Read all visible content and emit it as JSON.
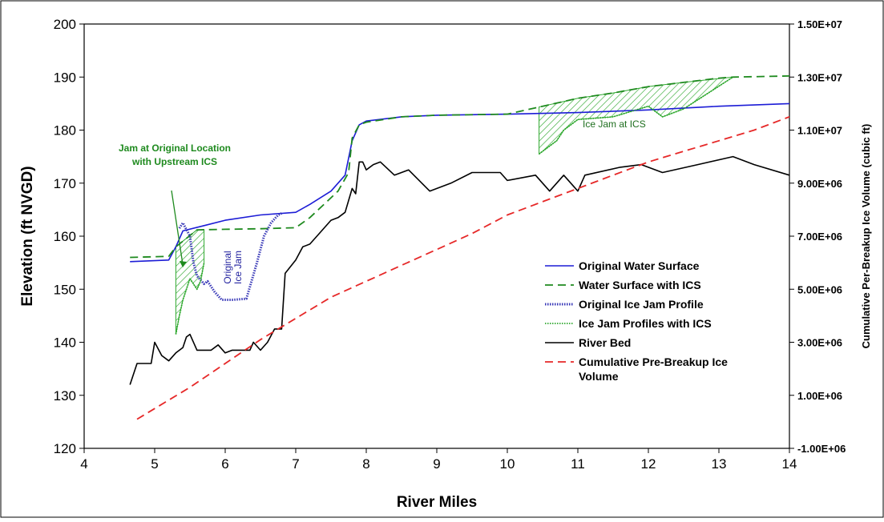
{
  "chart_data": {
    "type": "line",
    "xlabel": "River Miles",
    "ylabel": "Elevation (ft NVGD)",
    "y2label": "Cumulative Per-Breakup Ice Volume (cubic ft)",
    "xlim": [
      4,
      14
    ],
    "ylim": [
      120,
      200
    ],
    "y2lim": [
      -1000000,
      15000000
    ],
    "x_ticks": [
      "4",
      "5",
      "6",
      "7",
      "8",
      "9",
      "10",
      "11",
      "12",
      "13",
      "14"
    ],
    "y_ticks": [
      "120",
      "130",
      "140",
      "150",
      "160",
      "170",
      "180",
      "190",
      "200"
    ],
    "y2_ticks": [
      "-1.00E+06",
      "1.00E+06",
      "3.00E+06",
      "5.00E+06",
      "7.00E+06",
      "9.00E+06",
      "1.10E+07",
      "1.30E+07",
      "1.50E+07"
    ],
    "grid": false,
    "legend_position": "lower-right inside plot",
    "series": [
      {
        "name": "Original Water Surface",
        "style": "solid",
        "color": "#1c1cd6",
        "axis": "left",
        "x": [
          4.65,
          5.2,
          5.3,
          5.4,
          5.7,
          6.0,
          6.5,
          7.0,
          7.2,
          7.5,
          7.7,
          7.8,
          7.9,
          8.0,
          8.5,
          9.0,
          10.0,
          11.0,
          12.0,
          13.0,
          14.0
        ],
        "y": [
          155.2,
          155.5,
          158.0,
          161.0,
          162.0,
          163.0,
          164.0,
          164.5,
          166.0,
          168.5,
          171.5,
          178.0,
          181.0,
          181.7,
          182.5,
          182.8,
          183.0,
          183.3,
          183.8,
          184.5,
          185.0
        ]
      },
      {
        "name": "Water Surface with ICS",
        "style": "dashed",
        "color": "#1e8a1e",
        "axis": "left",
        "x": [
          4.65,
          5.2,
          5.3,
          5.6,
          6.0,
          6.5,
          7.0,
          7.2,
          7.4,
          7.6,
          7.75,
          7.8,
          7.9,
          8.0,
          8.5,
          9.0,
          10.0,
          10.5,
          11.0,
          11.5,
          12.0,
          12.5,
          13.0,
          13.2,
          14.0
        ],
        "y": [
          156.0,
          156.2,
          158.0,
          161.2,
          161.3,
          161.4,
          161.6,
          163.5,
          166.0,
          168.5,
          172.0,
          178.5,
          181.0,
          181.5,
          182.5,
          182.8,
          183.0,
          184.5,
          186.0,
          187.0,
          188.2,
          189.0,
          189.8,
          190.0,
          190.2
        ]
      },
      {
        "name": "Original Ice Jam Profile",
        "style": "thick dotted",
        "color": "#3a3ab8",
        "axis": "left",
        "x": [
          5.35,
          5.4,
          5.5,
          5.55,
          5.6,
          5.7,
          5.75,
          5.85,
          5.95,
          6.1,
          6.3,
          6.45,
          6.55,
          6.65,
          6.75,
          6.8
        ],
        "y": [
          161.5,
          162.5,
          160.0,
          155.0,
          152.5,
          151.0,
          151.5,
          149.5,
          148.0,
          148.0,
          148.2,
          155.0,
          160.0,
          162.5,
          164.0,
          164.3
        ]
      },
      {
        "name": "Ice Jam Profiles with ICS",
        "style": "thin dotted hatched",
        "color": "#2ea82e",
        "axis": "left",
        "x": [
          5.3,
          5.35,
          5.4,
          5.5,
          5.6,
          5.65,
          5.7,
          10.45,
          10.55,
          10.7,
          10.8,
          11.0,
          11.5,
          12.0,
          12.2,
          12.5,
          13.2
        ],
        "y": [
          141.5,
          145.0,
          148.0,
          152.0,
          150.0,
          151.5,
          155.0,
          175.5,
          176.5,
          178.0,
          180.0,
          182.0,
          182.5,
          184.5,
          182.5,
          184.0,
          190.0
        ]
      },
      {
        "name": "River Bed",
        "style": "solid",
        "color": "#000000",
        "axis": "left",
        "x": [
          4.65,
          4.75,
          4.8,
          4.95,
          5.0,
          5.1,
          5.2,
          5.3,
          5.4,
          5.45,
          5.5,
          5.6,
          5.8,
          5.9,
          6.0,
          6.1,
          6.35,
          6.4,
          6.5,
          6.6,
          6.7,
          6.8,
          6.85,
          7.0,
          7.1,
          7.2,
          7.3,
          7.5,
          7.6,
          7.7,
          7.8,
          7.85,
          7.9,
          7.95,
          8.0,
          8.1,
          8.2,
          8.4,
          8.6,
          8.9,
          9.2,
          9.5,
          9.9,
          10.0,
          10.4,
          10.6,
          10.8,
          11.0,
          11.1,
          11.6,
          11.9,
          12.2,
          12.7,
          13.2,
          13.5,
          14.0
        ],
        "y": [
          132.0,
          136.0,
          136.0,
          136.0,
          140.0,
          137.5,
          136.5,
          138.0,
          139.0,
          141.0,
          141.5,
          138.5,
          138.5,
          139.5,
          138.0,
          138.5,
          138.5,
          140.0,
          138.5,
          140.0,
          142.5,
          142.5,
          153.0,
          155.5,
          158.0,
          158.5,
          160.0,
          163.0,
          163.5,
          164.5,
          169.0,
          168.0,
          174.0,
          174.0,
          172.5,
          173.5,
          174.0,
          171.5,
          172.5,
          168.5,
          170.0,
          172.0,
          172.0,
          170.5,
          171.5,
          168.5,
          171.5,
          168.5,
          171.5,
          173.0,
          173.5,
          172.0,
          173.5,
          175.0,
          173.5,
          171.5
        ]
      },
      {
        "name": "Cumulative Pre-Breakup Ice Volume",
        "style": "dashed",
        "color": "#e62828",
        "axis": "right",
        "x": [
          4.75,
          5.0,
          5.5,
          6.0,
          6.5,
          7.0,
          7.5,
          8.0,
          8.5,
          9.0,
          9.5,
          10.0,
          10.5,
          11.0,
          11.5,
          12.0,
          12.5,
          13.0,
          13.5,
          14.0
        ],
        "y": [
          100000,
          500000,
          1300000,
          2200000,
          3100000,
          3900000,
          4700000,
          5300000,
          5900000,
          6500000,
          7100000,
          7800000,
          8300000,
          8800000,
          9300000,
          9800000,
          10200000,
          10600000,
          11000000,
          11500000
        ]
      }
    ],
    "annotations": [
      {
        "id": "jam-original-location",
        "lines": [
          "Jam at Original Location",
          "with Upstream ICS"
        ]
      },
      {
        "id": "original-ice-jam",
        "lines": [
          "Original",
          "Ice Jam"
        ]
      },
      {
        "id": "ice-jam-at-ics",
        "lines": [
          "Ice Jam at ICS"
        ]
      }
    ],
    "legend": [
      "Original Water Surface",
      "Water Surface with ICS",
      "Original Ice Jam Profile",
      "Ice Jam Profiles with ICS",
      "River Bed",
      "Cumulative Pre-Breakup Ice",
      "Volume"
    ]
  }
}
